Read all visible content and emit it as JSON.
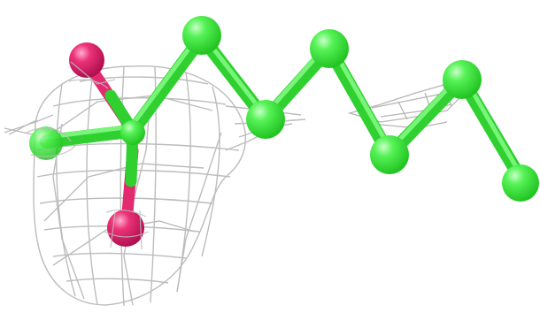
{
  "scene": {
    "background": "#ffffff",
    "colors": {
      "carbon": "#33ee33",
      "carbon_highlight": "#aaffaa",
      "oxygen": "#e8256e",
      "oxygen_highlight": "#ff9ec4",
      "mesh": "#a8a8a8"
    }
  }
}
